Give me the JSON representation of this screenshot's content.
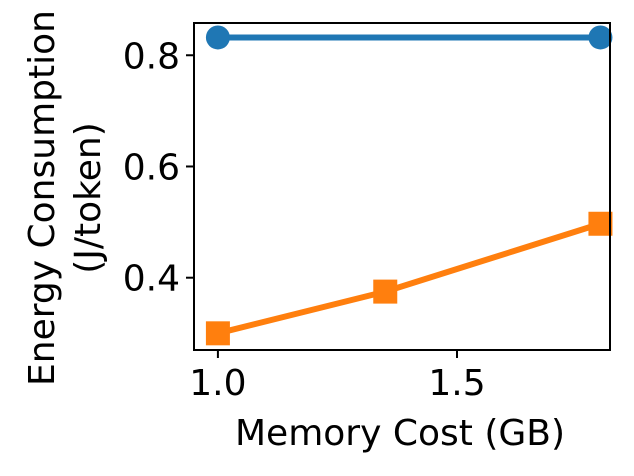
{
  "chart_data": {
    "type": "line",
    "title": "",
    "xlabel": "Memory Cost (GB)",
    "ylabel_line1": "Energy Consumption",
    "ylabel_line2": "(J/token)",
    "xlim": [
      0.95,
      1.82
    ],
    "ylim": [
      0.27,
      0.858
    ],
    "xticks": [
      1.0,
      1.5
    ],
    "xtick_labels": [
      "1.0",
      "1.5"
    ],
    "yticks": [
      0.4,
      0.6,
      0.8
    ],
    "ytick_labels": [
      "0.4",
      "0.6",
      "0.8"
    ],
    "grid": false,
    "legend": "none",
    "series": [
      {
        "color": "#1f77b4",
        "marker": "circle",
        "x": [
          1.0,
          1.8
        ],
        "values": [
          0.832,
          0.832
        ]
      },
      {
        "color": "#ff7f0e",
        "marker": "square",
        "x": [
          1.0,
          1.35,
          1.8
        ],
        "values": [
          0.3,
          0.375,
          0.497
        ]
      }
    ]
  }
}
